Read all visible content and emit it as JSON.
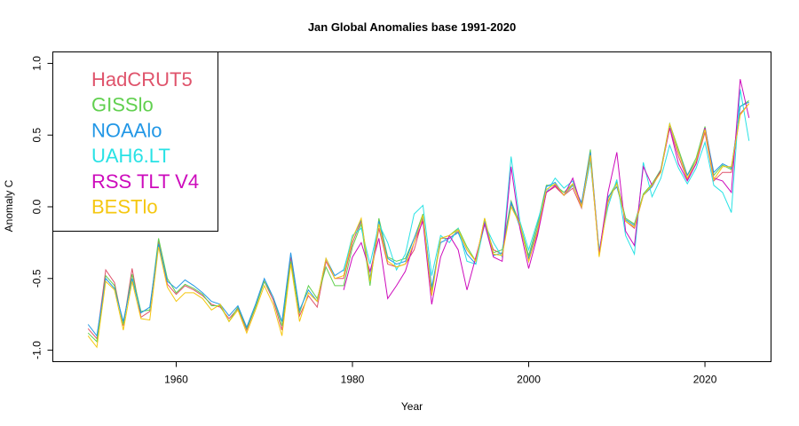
{
  "chart_data": {
    "type": "line",
    "title": "Jan Global Anomalies base 1991-2020",
    "xlabel": "Year",
    "ylabel": "Anomaly C",
    "xlim": [
      1946,
      2027.5
    ],
    "ylim": [
      -1.08,
      1.08
    ],
    "x_ticks": [
      1960,
      1980,
      2000,
      2020
    ],
    "x_tick_labels": [
      "1960",
      "1980",
      "2000",
      "2020"
    ],
    "y_ticks": [
      -1.0,
      -0.5,
      0.0,
      0.5,
      1.0
    ],
    "y_tick_labels": [
      "-1.0",
      "-0.5",
      "0.0",
      "0.5",
      "1.0"
    ],
    "grid": false,
    "legend_position": "top-left",
    "series": [
      {
        "name": "HadCRUT5",
        "color": "#DF536B",
        "start_year": 1950,
        "values": [
          -0.85,
          -0.92,
          -0.44,
          -0.53,
          -0.83,
          -0.43,
          -0.77,
          -0.73,
          -0.24,
          -0.54,
          -0.61,
          -0.55,
          -0.58,
          -0.62,
          -0.68,
          -0.7,
          -0.78,
          -0.71,
          -0.86,
          -0.7,
          -0.52,
          -0.65,
          -0.86,
          -0.35,
          -0.76,
          -0.62,
          -0.7,
          -0.38,
          -0.5,
          -0.5,
          -0.25,
          -0.1,
          -0.52,
          -0.15,
          -0.4,
          -0.42,
          -0.4,
          -0.3,
          -0.08,
          -0.6,
          -0.22,
          -0.22,
          -0.17,
          -0.3,
          -0.38,
          -0.12,
          -0.3,
          -0.33,
          0.02,
          -0.12,
          -0.38,
          -0.18,
          0.1,
          0.14,
          0.08,
          0.13,
          -0.01,
          0.33,
          -0.33,
          0.03,
          0.18,
          -0.1,
          -0.15,
          0.08,
          0.15,
          0.25,
          0.55,
          0.35,
          0.19,
          0.3,
          0.52,
          0.18,
          0.24,
          0.24,
          0.65,
          0.72
        ]
      },
      {
        "name": "GISSlo",
        "color": "#61D04F",
        "start_year": 1950,
        "values": [
          -0.88,
          -0.94,
          -0.48,
          -0.55,
          -0.82,
          -0.47,
          -0.73,
          -0.72,
          -0.22,
          -0.5,
          -0.6,
          -0.54,
          -0.57,
          -0.61,
          -0.69,
          -0.69,
          -0.8,
          -0.7,
          -0.85,
          -0.7,
          -0.52,
          -0.63,
          -0.83,
          -0.38,
          -0.74,
          -0.55,
          -0.64,
          -0.42,
          -0.55,
          -0.55,
          -0.28,
          -0.12,
          -0.55,
          -0.08,
          -0.35,
          -0.38,
          -0.36,
          -0.22,
          -0.05,
          -0.58,
          -0.22,
          -0.2,
          -0.15,
          -0.28,
          -0.38,
          -0.08,
          -0.32,
          -0.3,
          0.04,
          -0.12,
          -0.34,
          -0.12,
          0.15,
          0.15,
          0.1,
          0.16,
          0.02,
          0.4,
          -0.34,
          0.06,
          0.17,
          -0.08,
          -0.12,
          0.09,
          0.16,
          0.26,
          0.58,
          0.4,
          0.22,
          0.34,
          0.56,
          0.22,
          0.29,
          0.26,
          0.7,
          0.74
        ]
      },
      {
        "name": "NOAAlo",
        "color": "#2297E6",
        "start_year": 1950,
        "values": [
          -0.82,
          -0.9,
          -0.5,
          -0.57,
          -0.8,
          -0.5,
          -0.74,
          -0.7,
          -0.26,
          -0.52,
          -0.57,
          -0.51,
          -0.55,
          -0.6,
          -0.66,
          -0.68,
          -0.76,
          -0.69,
          -0.84,
          -0.68,
          -0.5,
          -0.63,
          -0.8,
          -0.32,
          -0.72,
          -0.58,
          -0.66,
          -0.36,
          -0.48,
          -0.44,
          -0.22,
          -0.09,
          -0.5,
          -0.1,
          -0.36,
          -0.4,
          -0.38,
          -0.22,
          -0.07,
          -0.56,
          -0.25,
          -0.22,
          -0.18,
          -0.33,
          -0.4,
          -0.1,
          -0.34,
          -0.32,
          0.03,
          -0.14,
          -0.36,
          -0.15,
          0.14,
          0.17,
          0.08,
          0.15,
          0.03,
          0.38,
          -0.32,
          0.07,
          0.14,
          -0.09,
          -0.13,
          0.08,
          0.14,
          0.25,
          0.57,
          0.38,
          0.22,
          0.32,
          0.55,
          0.24,
          0.3,
          0.27,
          0.7,
          0.73
        ]
      },
      {
        "name": "UAH6.LT",
        "color": "#28E2E5",
        "start_year": 1979,
        "values": [
          -0.45,
          -0.2,
          -0.15,
          -0.4,
          -0.12,
          -0.25,
          -0.44,
          -0.33,
          -0.05,
          0.01,
          -0.48,
          -0.2,
          -0.25,
          -0.15,
          -0.38,
          -0.4,
          -0.12,
          -0.25,
          -0.35,
          0.35,
          -0.1,
          -0.3,
          -0.1,
          0.1,
          0.2,
          0.13,
          0.18,
          0.0,
          0.32,
          -0.3,
          0.0,
          0.19,
          -0.2,
          -0.33,
          0.31,
          0.07,
          0.2,
          0.43,
          0.27,
          0.16,
          0.27,
          0.45,
          0.15,
          0.1,
          -0.04,
          0.82,
          0.46
        ]
      },
      {
        "name": "RSS TLT V4",
        "color": "#CD0BBC",
        "start_year": 1979,
        "values": [
          -0.58,
          -0.35,
          -0.25,
          -0.45,
          -0.22,
          -0.64,
          -0.55,
          -0.45,
          -0.25,
          -0.1,
          -0.68,
          -0.35,
          -0.2,
          -0.3,
          -0.58,
          -0.35,
          -0.12,
          -0.35,
          -0.38,
          0.28,
          -0.15,
          -0.43,
          -0.2,
          0.1,
          0.15,
          0.08,
          0.2,
          0.0,
          0.36,
          -0.33,
          0.1,
          0.38,
          -0.17,
          -0.27,
          0.28,
          0.15,
          0.25,
          0.55,
          0.3,
          0.18,
          0.3,
          0.55,
          0.2,
          0.18,
          0.1,
          0.89,
          0.62
        ]
      },
      {
        "name": "BESTlo",
        "color": "#F5C710",
        "start_year": 1950,
        "values": [
          -0.9,
          -0.98,
          -0.52,
          -0.58,
          -0.86,
          -0.52,
          -0.78,
          -0.79,
          -0.28,
          -0.56,
          -0.66,
          -0.6,
          -0.6,
          -0.64,
          -0.72,
          -0.68,
          -0.8,
          -0.72,
          -0.88,
          -0.72,
          -0.55,
          -0.68,
          -0.9,
          -0.4,
          -0.8,
          -0.6,
          -0.66,
          -0.36,
          -0.5,
          -0.48,
          -0.22,
          -0.08,
          -0.52,
          -0.12,
          -0.38,
          -0.42,
          -0.4,
          -0.25,
          -0.06,
          -0.62,
          -0.22,
          -0.2,
          -0.16,
          -0.3,
          -0.38,
          -0.08,
          -0.33,
          -0.34,
          0.0,
          -0.12,
          -0.38,
          -0.16,
          0.12,
          0.16,
          0.08,
          0.16,
          0.0,
          0.36,
          -0.35,
          0.04,
          0.16,
          -0.1,
          -0.14,
          0.08,
          0.15,
          0.24,
          0.58,
          0.38,
          0.2,
          0.32,
          0.54,
          0.19,
          0.28,
          0.28,
          0.64,
          0.72
        ]
      }
    ]
  }
}
